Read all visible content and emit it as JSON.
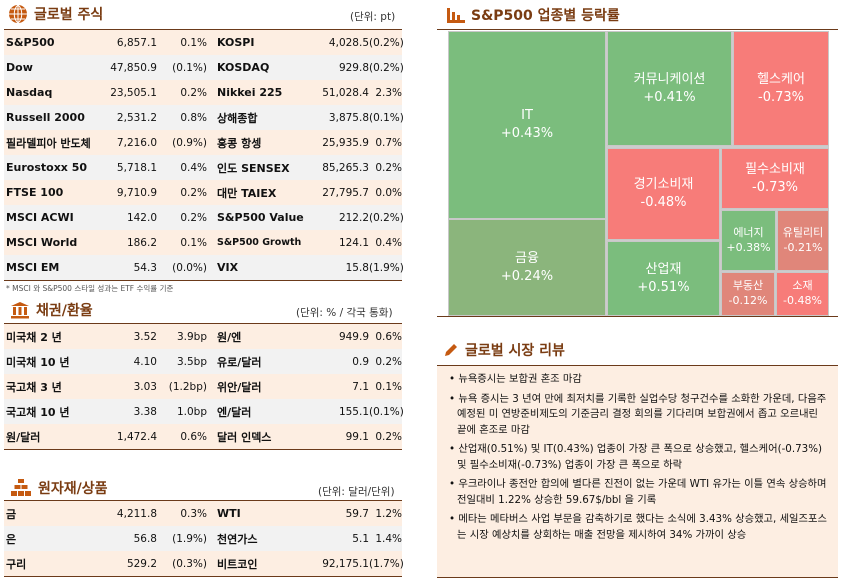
{
  "global_stocks": {
    "title": "글로벌 주식",
    "unit": "(단위: pt)",
    "icon": "globe-icon",
    "rows": [
      [
        "S&P500",
        "6,857.1",
        "0.1%",
        "KOSPI",
        "4,028.5",
        "(0.2%)"
      ],
      [
        "Dow",
        "47,850.9",
        "(0.1%)",
        "KOSDAQ",
        "929.8",
        "(0.2%)"
      ],
      [
        "Nasdaq",
        "23,505.1",
        "0.2%",
        "Nikkei 225",
        "51,028.4",
        "2.3%"
      ],
      [
        "Russell 2000",
        "2,531.2",
        "0.8%",
        "상해종합",
        "3,875.8",
        "(0.1%)"
      ],
      [
        "필라델피아 반도체",
        "7,216.0",
        "(0.9%)",
        "홍콩 항셍",
        "25,935.9",
        "0.7%"
      ],
      [
        "Eurostoxx 50",
        "5,718.1",
        "0.4%",
        "인도 SENSEX",
        "85,265.3",
        "0.2%"
      ],
      [
        "FTSE 100",
        "9,710.9",
        "0.2%",
        "대만 TAIEX",
        "27,795.7",
        "0.0%"
      ],
      [
        "MSCI ACWI",
        "142.0",
        "0.2%",
        "S&P500 Value",
        "212.2",
        "(0.2%)"
      ],
      [
        "MSCI World",
        "186.2",
        "0.1%",
        "S&P500 Growth",
        "124.1",
        "0.4%"
      ],
      [
        "MSCI EM",
        "54.3",
        "(0.0%)",
        "VIX",
        "15.8",
        "(1.9%)"
      ]
    ],
    "note": "* MSCI 와 S&P500 스타일 성과는 ETF 수익률 기준"
  },
  "bonds_fx": {
    "title": "채권/환율",
    "unit": "(단위: % / 각국 통화)",
    "icon": "bank-icon",
    "rows": [
      [
        "미국채 2 년",
        "3.52",
        "3.9bp",
        "원/엔",
        "949.9",
        "0.6%"
      ],
      [
        "미국채 10 년",
        "4.10",
        "3.5bp",
        "유로/달러",
        "0.9",
        "0.2%"
      ],
      [
        "국고채 3 년",
        "3.03",
        "(1.2bp)",
        "위안/달러",
        "7.1",
        "0.1%"
      ],
      [
        "국고채 10 년",
        "3.38",
        "1.0bp",
        "엔/달러",
        "155.1",
        "(0.1%)"
      ],
      [
        "원/달러",
        "1,472.4",
        "0.6%",
        "달러 인덱스",
        "99.1",
        "0.2%"
      ]
    ]
  },
  "commodities": {
    "title": "원자재/상품",
    "unit": "(단위: 달러/단위)",
    "icon": "gold-bars-icon",
    "rows": [
      [
        "금",
        "4,211.8",
        "0.3%",
        "WTI",
        "59.7",
        "1.2%"
      ],
      [
        "은",
        "56.8",
        "(1.9%)",
        "천연가스",
        "5.1",
        "1.4%"
      ],
      [
        "구리",
        "529.2",
        "(0.3%)",
        "비트코인",
        "92,175.1",
        "(1.7%)"
      ]
    ]
  },
  "sector": {
    "title": "S&P500 업종별 등락률",
    "icon": "bar-chart-icon",
    "colors": {
      "up": "#7bbd7d",
      "up_muted": "#8bb57c",
      "down": "#f77c79",
      "down_muted": "#e0867a"
    },
    "cells": [
      {
        "name": "IT",
        "value": "+0.43%"
      },
      {
        "name": "금융",
        "value": "+0.24%"
      },
      {
        "name": "커뮤니케이션",
        "value": "+0.41%"
      },
      {
        "name": "헬스케어",
        "value": "-0.73%"
      },
      {
        "name": "경기소비재",
        "value": "-0.48%"
      },
      {
        "name": "필수소비재",
        "value": "-0.73%"
      },
      {
        "name": "산업재",
        "value": "+0.51%"
      },
      {
        "name": "에너지",
        "value": "+0.38%"
      },
      {
        "name": "유틸리티",
        "value": "-0.21%"
      },
      {
        "name": "부동산",
        "value": "-0.12%"
      },
      {
        "name": "소재",
        "value": "-0.48%"
      }
    ]
  },
  "review": {
    "title": "글로벌 시장 리뷰",
    "icon": "pencil-icon",
    "items": [
      "뉴욕증시는 보합권 혼조 마감",
      "뉴욕 증시는 3 년여 만에 최저치를 기록한 실업수당 청구건수를 소화한 가운데, 다음주 예정된 미 연방준비제도의 기준금리 결정 회의를 기다리며 보합권에서 좁고 오르내린 끝에 혼조로 마감",
      "산업재(0.51%) 및 IT(0.43%) 업종이 가장 큰 폭으로 상승했고, 헬스케어(-0.73%) 및 필수소비재(-0.73%) 업종이 가장 큰 폭으로 하락",
      "우크라이나 종전안 합의에 별다른 진전이 없는 가운데 WTI 유가는 이틀 연속 상승하며 전일대비 1.22% 상승한 59.67$/bbl 을 기록",
      "메타는 메타버스 사업 부문을 감축하기로 했다는 소식에 3.43% 상승했고, 세일즈포스는 시장 예상치를 상회하는 매출 전망을 제시하여 34% 가까이 상승"
    ]
  }
}
